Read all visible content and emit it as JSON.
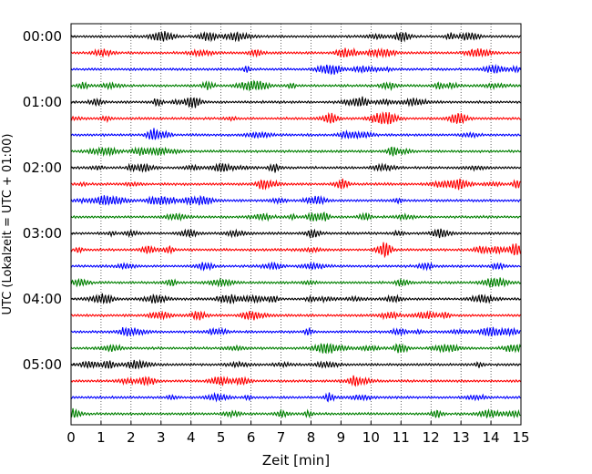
{
  "chart_data": {
    "type": "line",
    "title": "",
    "xlabel": "Zeit  [min]",
    "ylabel": "UTC (Lokalzeit = UTC + 01:00)",
    "xlim": [
      0,
      15
    ],
    "x_ticks": [
      "0",
      "1",
      "2",
      "3",
      "4",
      "5",
      "6",
      "7",
      "8",
      "9",
      "10",
      "11",
      "12",
      "13",
      "14",
      "15"
    ],
    "y_ticks": [
      "00:00",
      "01:00",
      "02:00",
      "03:00",
      "04:00",
      "05:00"
    ],
    "row_start_times": [
      "00:00",
      "00:15",
      "00:30",
      "00:45",
      "01:00",
      "01:15",
      "01:30",
      "01:45",
      "02:00",
      "02:15",
      "02:30",
      "02:45",
      "03:00",
      "03:15",
      "03:30",
      "03:45",
      "04:00",
      "04:15",
      "04:30",
      "04:45",
      "05:00",
      "05:15",
      "05:30",
      "05:45"
    ],
    "trace_colors": [
      "#000000",
      "#ff0000",
      "#0000ff",
      "#008000"
    ],
    "vertical_gridlines": "dotted",
    "grid": true,
    "legend": "none"
  }
}
